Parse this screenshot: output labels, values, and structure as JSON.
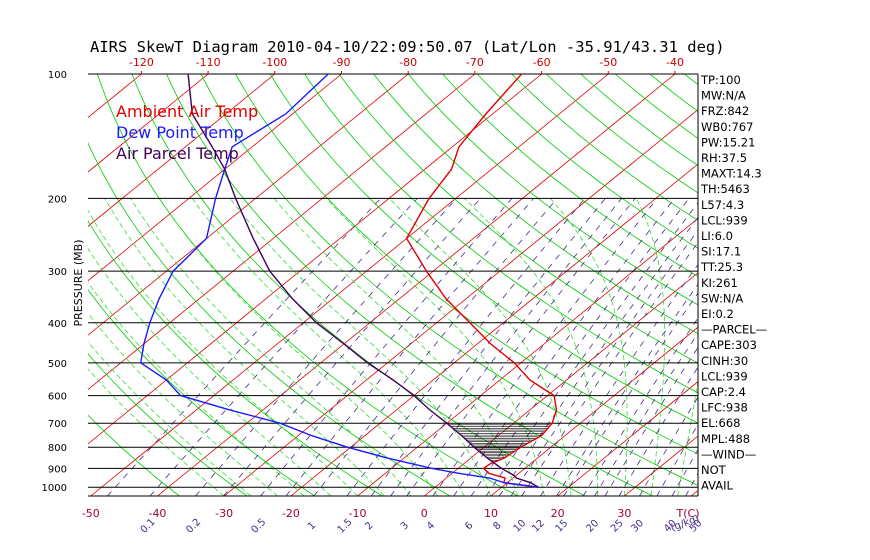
{
  "chart_data": {
    "type": "line",
    "title": "AIRS SkewT Diagram 2010-04-10/22:09:50.07 (Lat/Lon -35.91/43.31 deg)",
    "ylabel": "PRESSURE (MB)",
    "xlabel": "T(C)",
    "mixing_ratio_label": "(g/kg)",
    "y_scale": "log",
    "ylim": [
      1050,
      100
    ],
    "pressure_ticks": [
      100,
      200,
      300,
      400,
      500,
      600,
      700,
      800,
      900,
      1000
    ],
    "top_temp_ticks": [
      -120,
      -110,
      -100,
      -90,
      -80,
      -70,
      -60,
      -50,
      -40
    ],
    "bottom_temp_ticks": [
      -50,
      -40,
      -30,
      -20,
      -10,
      0,
      10,
      20,
      30
    ],
    "mixing_ratio_ticks": [
      "0.1",
      "0.2",
      "0.5",
      "1",
      "1.5",
      "2",
      "3",
      "4",
      "6",
      "8",
      "10",
      "12",
      "15",
      "20",
      "25",
      "30",
      "40",
      "50"
    ],
    "legend": [
      "Ambient Air Temp",
      "Dew Point Temp",
      "Air Parcel Temp"
    ],
    "colors": {
      "ambient": "#e00000",
      "dewpoint": "#1a1aff",
      "parcel": "#40005a",
      "isotherm": "#e00000",
      "dry_adiabat": "#00cc00",
      "moist_adiabat": "#33dd33",
      "mixing_ratio": "#4a2a88",
      "isobar": "#000000",
      "axis_labels": "#a00040",
      "top_axis": "#cc0000"
    },
    "series": [
      {
        "name": "Ambient Air Temp",
        "points": [
          [
            1000,
            15.5
          ],
          [
            975,
            9.5
          ],
          [
            950,
            8.8
          ],
          [
            925,
            5.5
          ],
          [
            900,
            3.8
          ],
          [
            875,
            4.0
          ],
          [
            850,
            5.0
          ],
          [
            800,
            5.5
          ],
          [
            750,
            6.5
          ],
          [
            700,
            5.8
          ],
          [
            650,
            4.0
          ],
          [
            600,
            1.0
          ],
          [
            550,
            -5.5
          ],
          [
            500,
            -11.0
          ],
          [
            450,
            -18.0
          ],
          [
            400,
            -25.0
          ],
          [
            350,
            -33.0
          ],
          [
            300,
            -41.0
          ],
          [
            250,
            -50.0
          ],
          [
            200,
            -54.0
          ],
          [
            170,
            -56.0
          ],
          [
            150,
            -59.0
          ],
          [
            125,
            -61.0
          ],
          [
            100,
            -63.0
          ]
        ]
      },
      {
        "name": "Dew Point Temp",
        "points": [
          [
            1000,
            15.5
          ],
          [
            975,
            9.5
          ],
          [
            950,
            6.5
          ],
          [
            925,
            1.0
          ],
          [
            900,
            -4.0
          ],
          [
            850,
            -12.5
          ],
          [
            800,
            -20.5
          ],
          [
            750,
            -28.0
          ],
          [
            700,
            -35.0
          ],
          [
            650,
            -45.0
          ],
          [
            600,
            -55.0
          ],
          [
            550,
            -60.0
          ],
          [
            500,
            -67.0
          ],
          [
            450,
            -70.0
          ],
          [
            400,
            -73.0
          ],
          [
            350,
            -76.0
          ],
          [
            300,
            -79.0
          ],
          [
            250,
            -80.0
          ],
          [
            200,
            -86.0
          ],
          [
            170,
            -90.0
          ],
          [
            150,
            -93.0
          ],
          [
            125,
            -91.0
          ],
          [
            100,
            -92.0
          ]
        ]
      },
      {
        "name": "Air Parcel Temp",
        "points": [
          [
            1000,
            15.5
          ],
          [
            975,
            13.5
          ],
          [
            950,
            10.5
          ],
          [
            938,
            9.8
          ],
          [
            900,
            6.5
          ],
          [
            850,
            2.5
          ],
          [
            800,
            -1.5
          ],
          [
            750,
            -5.5
          ],
          [
            700,
            -10.0
          ],
          [
            650,
            -15.0
          ],
          [
            600,
            -20.0
          ],
          [
            550,
            -26.0
          ],
          [
            500,
            -33.0
          ],
          [
            450,
            -40.0
          ],
          [
            400,
            -48.0
          ],
          [
            350,
            -56.0
          ],
          [
            300,
            -64.5
          ],
          [
            250,
            -73.0
          ],
          [
            200,
            -83.0
          ],
          [
            170,
            -90.0
          ],
          [
            150,
            -96.0
          ],
          [
            125,
            -105.0
          ],
          [
            100,
            -113.0
          ]
        ]
      }
    ],
    "indices": [
      "TP:100",
      "MW:N/A",
      "FRZ:842",
      "WB0:767",
      "PW:15.21",
      "RH:37.5",
      "MAXT:14.3",
      "TH:5463",
      "L57:4.3",
      "LCL:939",
      "LI:6.0",
      "SI:17.1",
      "TT:25.3",
      "KI:261",
      "SW:N/A",
      "EI:0.2",
      "—PARCEL—",
      "CAPE:303",
      "CINH:30",
      "LCL:939",
      "CAP:2.4",
      "LFC:938",
      "EL:668",
      "MPL:488",
      "—WIND—",
      "NOT",
      "AVAIL"
    ]
  }
}
